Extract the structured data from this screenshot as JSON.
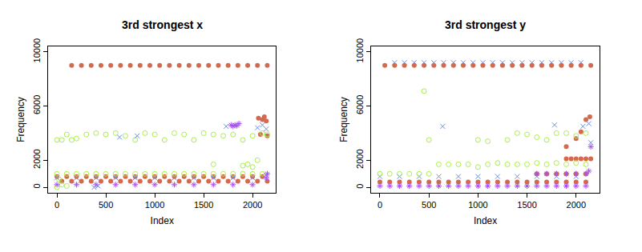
{
  "chart_data": [
    {
      "type": "scatter",
      "title": "3rd strongest x",
      "x_label": "Index",
      "y_label": "Frequency",
      "xlim": [
        -90,
        2240
      ],
      "ylim": [
        -400,
        10400
      ],
      "xticks": [
        0,
        500,
        1000,
        1500,
        2000
      ],
      "yticks": [
        0,
        2000,
        6000,
        10000
      ],
      "grid": false,
      "series": [
        {
          "color": "#d5694e",
          "marker": "circle",
          "x": [
            150,
            250,
            350,
            450,
            550,
            650,
            750,
            850,
            950,
            1050,
            1150,
            1250,
            1350,
            1450,
            1550,
            1650,
            1750,
            1850,
            1950,
            2050,
            2150,
            0,
            100,
            200,
            300,
            400,
            500,
            600,
            700,
            800,
            900,
            1000,
            1100,
            1200,
            1300,
            1400,
            1500,
            1600,
            1700,
            1800,
            1900,
            2000,
            2100,
            50,
            150,
            250,
            350,
            450,
            550,
            650,
            750,
            850,
            950,
            1050,
            1150,
            1250,
            1350,
            1450,
            1550,
            1650,
            1750,
            1850,
            1950,
            2050,
            2150,
            2080,
            2100,
            2120,
            2140,
            2060,
            2150
          ],
          "values": [
            9000,
            9000,
            9000,
            9000,
            9000,
            9000,
            9000,
            9000,
            9000,
            9000,
            9000,
            9000,
            9000,
            9000,
            9000,
            9000,
            9000,
            9000,
            9000,
            9000,
            9000,
            800,
            800,
            800,
            800,
            800,
            800,
            800,
            800,
            800,
            800,
            800,
            800,
            800,
            800,
            800,
            800,
            800,
            800,
            800,
            800,
            800,
            800,
            450,
            450,
            450,
            450,
            450,
            450,
            450,
            450,
            450,
            450,
            450,
            450,
            450,
            450,
            450,
            450,
            450,
            450,
            450,
            450,
            450,
            450,
            3900,
            5000,
            5200,
            4900,
            5100,
            3800
          ]
        },
        {
          "color": "#aaee4e",
          "marker": "circle-open",
          "x": [
            0,
            50,
            100,
            150,
            200,
            300,
            400,
            500,
            600,
            700,
            800,
            900,
            1000,
            1100,
            1200,
            1300,
            1400,
            1500,
            1600,
            1700,
            1800,
            1900,
            2000,
            2100,
            2150,
            0,
            100,
            200,
            300,
            400,
            500,
            600,
            700,
            800,
            900,
            1000,
            1100,
            1200,
            1300,
            1400,
            1500,
            1600,
            1700,
            1800,
            1900,
            2000,
            2100,
            0,
            50,
            100,
            20,
            1950,
            2000,
            2050,
            1900,
            1600
          ],
          "values": [
            3500,
            3500,
            3900,
            3500,
            3600,
            3900,
            4000,
            3900,
            4000,
            3800,
            3500,
            4000,
            3900,
            3500,
            4000,
            3900,
            3500,
            4000,
            3900,
            3800,
            3900,
            3500,
            3800,
            4000,
            3900,
            1000,
            1000,
            1000,
            1000,
            1000,
            1000,
            1000,
            1000,
            1000,
            1000,
            1000,
            1000,
            1000,
            1000,
            1000,
            1000,
            1000,
            1000,
            1000,
            1000,
            1000,
            1000,
            0,
            200,
            100,
            600,
            1700,
            1500,
            2000,
            1600,
            1700
          ]
        },
        {
          "color": "#6b8fe6",
          "marker": "x",
          "x": [
            0,
            200,
            400,
            600,
            800,
            1000,
            1200,
            1400,
            1600,
            1800,
            2000,
            380,
            420,
            640,
            820,
            1730,
            2050,
            2100,
            2140,
            2140
          ],
          "values": [
            700,
            700,
            700,
            700,
            700,
            700,
            700,
            700,
            700,
            700,
            700,
            0,
            100,
            3700,
            3800,
            4500,
            4400,
            4600,
            4300,
            900
          ]
        },
        {
          "color": "#a552ee",
          "marker": "asterisk",
          "x": [
            0,
            200,
            400,
            600,
            800,
            1000,
            1200,
            1400,
            1600,
            1800,
            2000,
            1780,
            1800,
            1820,
            1840,
            1860,
            2150,
            2140
          ],
          "values": [
            200,
            200,
            200,
            200,
            200,
            200,
            200,
            200,
            200,
            200,
            200,
            4600,
            4500,
            4600,
            4550,
            4700,
            1000,
            700
          ]
        }
      ]
    },
    {
      "type": "scatter",
      "title": "3rd strongest y",
      "x_label": "Index",
      "y_label": "Frequency",
      "xlim": [
        -90,
        2240
      ],
      "ylim": [
        -400,
        10400
      ],
      "xticks": [
        0,
        500,
        1000,
        1500,
        2000
      ],
      "yticks": [
        0,
        2000,
        6000,
        10000
      ],
      "grid": false,
      "series": [
        {
          "color": "#6b8fe6",
          "marker": "x",
          "x": [
            150,
            250,
            350,
            450,
            550,
            650,
            750,
            850,
            950,
            1050,
            1150,
            1250,
            1350,
            1450,
            1550,
            1650,
            1750,
            1850,
            1950,
            2050,
            640,
            1780,
            2070,
            2130,
            2150,
            0,
            200,
            400,
            600,
            800,
            1000,
            1200,
            1400,
            1600,
            1800,
            2000
          ],
          "values": [
            9200,
            9200,
            9200,
            9200,
            9200,
            9200,
            9200,
            9200,
            9200,
            9200,
            9200,
            9200,
            9200,
            9200,
            9200,
            9200,
            9200,
            9200,
            9200,
            9200,
            4500,
            4600,
            4500,
            4700,
            3300,
            800,
            800,
            800,
            800,
            800,
            800,
            800,
            800,
            800,
            800,
            800
          ]
        },
        {
          "color": "#d5694e",
          "marker": "circle",
          "x": [
            50,
            150,
            250,
            350,
            450,
            550,
            650,
            750,
            850,
            950,
            1050,
            1150,
            1250,
            1350,
            1450,
            1550,
            1650,
            1750,
            1850,
            1950,
            2050,
            2150,
            0,
            100,
            200,
            300,
            400,
            500,
            600,
            700,
            800,
            900,
            1000,
            1100,
            1200,
            1300,
            1400,
            1500,
            1600,
            1700,
            1800,
            1900,
            2000,
            2100,
            1600,
            1700,
            1800,
            1900,
            2000,
            2100,
            1900,
            1950,
            2000,
            2050,
            2100,
            2150,
            1900,
            2000,
            2050,
            2100,
            2140
          ],
          "values": [
            9000,
            9000,
            9000,
            9000,
            9000,
            9000,
            9000,
            9000,
            9000,
            9000,
            9000,
            9000,
            9000,
            9000,
            9000,
            9000,
            9000,
            9000,
            9000,
            9000,
            9000,
            9000,
            400,
            400,
            400,
            400,
            400,
            400,
            400,
            400,
            400,
            400,
            400,
            400,
            400,
            400,
            400,
            400,
            400,
            400,
            400,
            400,
            400,
            400,
            1000,
            1000,
            1000,
            1000,
            1000,
            1000,
            2100,
            2100,
            2100,
            2100,
            2100,
            2100,
            3000,
            3600,
            4100,
            5000,
            5200
          ]
        },
        {
          "color": "#aaee4e",
          "marker": "circle-open",
          "x": [
            0,
            100,
            200,
            300,
            400,
            500,
            450,
            500,
            600,
            700,
            800,
            900,
            1000,
            1100,
            1200,
            1300,
            1400,
            1500,
            1600,
            1700,
            1800,
            1900,
            2000,
            2100,
            1300,
            1400,
            1500,
            1600,
            1700,
            1800,
            1900,
            2000,
            2100,
            1000,
            1100
          ],
          "values": [
            1000,
            1000,
            1000,
            1000,
            1000,
            1000,
            7100,
            3500,
            1700,
            1700,
            1700,
            1700,
            1500,
            1700,
            1800,
            1700,
            1700,
            1700,
            1800,
            1700,
            1800,
            1700,
            1800,
            1700,
            3500,
            4000,
            3900,
            3700,
            3500,
            4000,
            4000,
            3800,
            4000,
            3500,
            3400
          ]
        },
        {
          "color": "#a552ee",
          "marker": "asterisk",
          "x": [
            0,
            100,
            200,
            300,
            400,
            500,
            600,
            700,
            800,
            900,
            1000,
            1100,
            1200,
            1300,
            1400,
            1500,
            1600,
            1700,
            1800,
            1900,
            2000,
            2100,
            1600,
            1700,
            1800,
            1900,
            2000,
            2100,
            2150,
            2130
          ],
          "values": [
            100,
            100,
            100,
            100,
            100,
            100,
            100,
            100,
            100,
            100,
            100,
            100,
            100,
            100,
            100,
            100,
            100,
            100,
            100,
            100,
            100,
            100,
            1000,
            1000,
            1000,
            1000,
            1000,
            1000,
            3000,
            1200
          ]
        }
      ]
    }
  ]
}
